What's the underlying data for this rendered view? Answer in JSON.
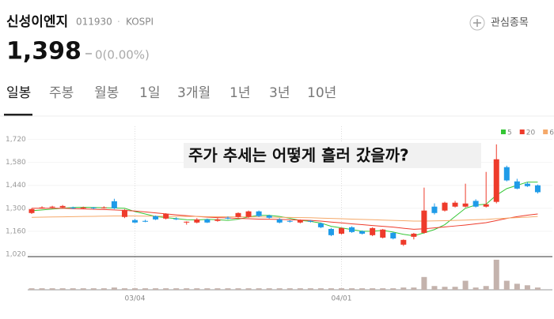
{
  "header": {
    "name": "신성이엔지",
    "code": "011930",
    "market": "KOSPI",
    "watch": "관심종목",
    "price": "1,398",
    "change": "0(0.00%)"
  },
  "tabs": [
    "일봉",
    "주봉",
    "월봉",
    "1일",
    "3개월",
    "1년",
    "3년",
    "10년"
  ],
  "selected_tab": 0,
  "chart_data": {
    "type": "candlestick",
    "annotation": "주가 추세는 어떻게 흘러 갔을까?",
    "categories": [
      null,
      null,
      null,
      null,
      null,
      null,
      null,
      null,
      null,
      null,
      "03/04",
      null,
      null,
      null,
      null,
      null,
      null,
      null,
      null,
      null,
      null,
      null,
      null,
      null,
      null,
      null,
      null,
      null,
      null,
      null,
      "04/01",
      null,
      null,
      null,
      null,
      null,
      null,
      null,
      null,
      null,
      null,
      null,
      null,
      null,
      null,
      null,
      null,
      null,
      null,
      null
    ],
    "open": [
      1271,
      1300,
      1305,
      1305,
      1305,
      1300,
      1305,
      1300,
      1343,
      1247,
      1228,
      1223,
      1252,
      1237,
      1237,
      1213,
      1213,
      1232,
      1223,
      1242,
      1247,
      1247,
      1281,
      1256,
      1232,
      1223,
      1213,
      1223,
      1208,
      1174,
      1145,
      1184,
      1160,
      1136,
      1121,
      1150,
      1078,
      1126,
      1150,
      1310,
      1286,
      1310,
      1310,
      1345,
      1310,
      1339,
      1551,
      1464,
      1450,
      1440
    ],
    "high": [
      1300,
      1312,
      1315,
      1320,
      1310,
      1310,
      1308,
      1312,
      1358,
      1295,
      1235,
      1230,
      1256,
      1270,
      1245,
      1220,
      1240,
      1237,
      1240,
      1250,
      1275,
      1286,
      1286,
      1261,
      1240,
      1228,
      1232,
      1228,
      1213,
      1180,
      1184,
      1190,
      1165,
      1184,
      1174,
      1155,
      1110,
      1150,
      1426,
      1330,
      1340,
      1345,
      1450,
      1355,
      1522,
      1690,
      1560,
      1480,
      1460,
      1445
    ],
    "low": [
      1265,
      1298,
      1300,
      1300,
      1295,
      1295,
      1295,
      1298,
      1295,
      1240,
      1210,
      1215,
      1228,
      1232,
      1228,
      1200,
      1208,
      1210,
      1218,
      1232,
      1242,
      1242,
      1247,
      1237,
      1208,
      1213,
      1208,
      1213,
      1179,
      1130,
      1140,
      1150,
      1140,
      1130,
      1116,
      1110,
      1070,
      1110,
      1145,
      1262,
      1280,
      1305,
      1305,
      1305,
      1305,
      1330,
      1464,
      1416,
      1430,
      1390
    ],
    "close": [
      1295,
      1305,
      1310,
      1314,
      1300,
      1305,
      1300,
      1305,
      1300,
      1290,
      1213,
      1218,
      1232,
      1266,
      1232,
      1218,
      1232,
      1213,
      1232,
      1237,
      1271,
      1281,
      1252,
      1242,
      1213,
      1218,
      1228,
      1218,
      1184,
      1136,
      1179,
      1155,
      1145,
      1179,
      1170,
      1116,
      1107,
      1145,
      1286,
      1271,
      1334,
      1334,
      1329,
      1310,
      1324,
      1599,
      1470,
      1420,
      1435,
      1398
    ],
    "up_color": "#ee3b2b",
    "down_color": "#1f9be8",
    "series": [
      {
        "name": "5",
        "color": "#35c635",
        "values": [
          1285,
          1290,
          1295,
          1300,
          1305,
          1306,
          1305,
          1303,
          1302,
          1300,
          1280,
          1265,
          1250,
          1243,
          1237,
          1230,
          1229,
          1232,
          1230,
          1226,
          1233,
          1247,
          1257,
          1257,
          1250,
          1239,
          1226,
          1220,
          1210,
          1190,
          1180,
          1170,
          1160,
          1160,
          1165,
          1155,
          1141,
          1132,
          1150,
          1170,
          1200,
          1250,
          1300,
          1320,
          1325,
          1380,
          1420,
          1440,
          1460,
          1460
        ]
      },
      {
        "name": "20",
        "color": "#ee3b2b",
        "values": [
          1300,
          1300,
          1300,
          1300,
          1298,
          1296,
          1294,
          1292,
          1290,
          1287,
          1283,
          1278,
          1272,
          1266,
          1260,
          1255,
          1250,
          1246,
          1243,
          1241,
          1238,
          1236,
          1234,
          1233,
          1232,
          1230,
          1228,
          1226,
          1222,
          1216,
          1211,
          1205,
          1200,
          1195,
          1190,
          1185,
          1178,
          1172,
          1175,
          1180,
          1186,
          1192,
          1198,
          1205,
          1212,
          1225,
          1238,
          1249,
          1258,
          1265
        ]
      },
      {
        "name": "60",
        "color": "#f5a96a",
        "values": [
          1245,
          1246,
          1247,
          1248,
          1249,
          1250,
          1251,
          1252,
          1253,
          1253,
          1253,
          1252,
          1252,
          1251,
          1251,
          1250,
          1250,
          1249,
          1249,
          1248,
          1248,
          1247,
          1247,
          1246,
          1245,
          1244,
          1243,
          1242,
          1240,
          1238,
          1236,
          1234,
          1232,
          1230,
          1228,
          1226,
          1224,
          1222,
          1222,
          1223,
          1224,
          1226,
          1228,
          1230,
          1232,
          1236,
          1240,
          1243,
          1246,
          1250
        ]
      }
    ],
    "volume": [
      2,
      2,
      2,
      2,
      2,
      2,
      2,
      2,
      3,
      2,
      2,
      2,
      2,
      2,
      2,
      2,
      2,
      2,
      2,
      2,
      2,
      2,
      2,
      2,
      2,
      2,
      2,
      2,
      2,
      2,
      2,
      2,
      2,
      2,
      2,
      2,
      3,
      3,
      17,
      5,
      4,
      4,
      12,
      3,
      5,
      40,
      12,
      8,
      6,
      3
    ],
    "volume_color": "#c4b3ad",
    "volume_ylim": [
      0,
      42
    ],
    "ylim": [
      1005,
      1800
    ],
    "yticks": [
      {
        "value": 1020,
        "label": "1,020"
      },
      {
        "value": 1160,
        "label": "1,160"
      },
      {
        "value": 1300,
        "label": "1,300"
      },
      {
        "value": 1440,
        "label": "1,440"
      },
      {
        "value": 1580,
        "label": "1,580"
      },
      {
        "value": 1720,
        "label": "1,720"
      }
    ],
    "legend": "top-right"
  }
}
